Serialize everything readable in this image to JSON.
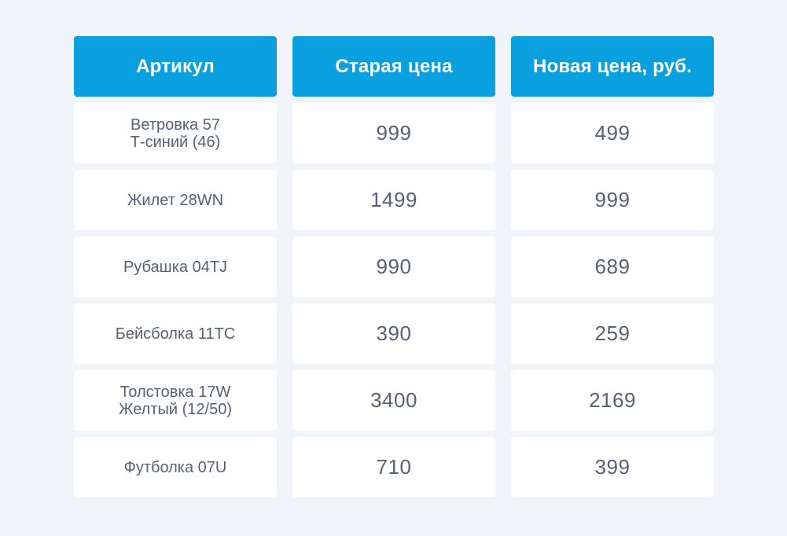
{
  "colors": {
    "background": "#f1f4f8",
    "header_bg": "#0aa0e0",
    "header_text": "#ffffff",
    "cell_bg": "#ffffff",
    "cell_text": "#566273"
  },
  "table": {
    "headers": [
      "Артикул",
      "Старая цена",
      "Новая цена, руб."
    ],
    "rows": [
      {
        "article": "Ветровка 57\nТ-синий (46)",
        "old_price": "999",
        "new_price": "499"
      },
      {
        "article": "Жилет 28WN",
        "old_price": "1499",
        "new_price": "999"
      },
      {
        "article": "Рубашка 04TJ",
        "old_price": "990",
        "new_price": "689"
      },
      {
        "article": "Бейсболка 11TC",
        "old_price": "390",
        "new_price": "259"
      },
      {
        "article": "Толстовка 17W\nЖелтый (12/50)",
        "old_price": "3400",
        "new_price": "2169"
      },
      {
        "article": "Футболка   07U",
        "old_price": "710",
        "new_price": "399"
      }
    ]
  }
}
